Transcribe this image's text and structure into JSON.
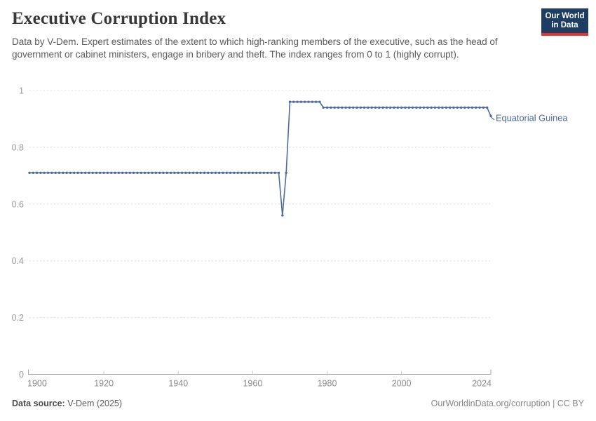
{
  "header": {
    "title": "Executive Corruption Index",
    "subtitle": "Data by V-Dem. Expert estimates of the extent to which high-ranking members of the executive, such as the head of government or cabinet ministers, engage in bribery and theft. The index ranges from 0 to 1 (highly corrupt).",
    "logo": {
      "line1": "Our World",
      "line2": "in Data"
    }
  },
  "footer": {
    "source_label": "Data source:",
    "source_value": " V-Dem (2025)",
    "credit": "OurWorldinData.org/corruption | CC BY"
  },
  "colors": {
    "line": "#4c6a9c",
    "entity_label": "#4c6a9c",
    "logo_navy": "#1d3d63",
    "logo_red": "#e0362f",
    "gridline": "#dcdcdc",
    "axis": "#a6a6a6",
    "tick_label": "#999999"
  },
  "chart_data": {
    "type": "line",
    "title": "Executive Corruption Index",
    "entity": "Equatorial Guinea",
    "xlabel": "",
    "ylabel": "",
    "x_start": 1900,
    "x_end": 2024,
    "x_step": 1,
    "x_ticks": [
      1900,
      1920,
      1940,
      1960,
      1980,
      2000,
      2024
    ],
    "y_ticks": [
      0,
      0.2,
      0.4,
      0.6,
      0.8,
      1
    ],
    "ylim": [
      0,
      1
    ],
    "grid": true,
    "legend_position": "end-of-line-label",
    "line_color": "#4c6a9c",
    "values": [
      0.71,
      0.71,
      0.71,
      0.71,
      0.71,
      0.71,
      0.71,
      0.71,
      0.71,
      0.71,
      0.71,
      0.71,
      0.71,
      0.71,
      0.71,
      0.71,
      0.71,
      0.71,
      0.71,
      0.71,
      0.71,
      0.71,
      0.71,
      0.71,
      0.71,
      0.71,
      0.71,
      0.71,
      0.71,
      0.71,
      0.71,
      0.71,
      0.71,
      0.71,
      0.71,
      0.71,
      0.71,
      0.71,
      0.71,
      0.71,
      0.71,
      0.71,
      0.71,
      0.71,
      0.71,
      0.71,
      0.71,
      0.71,
      0.71,
      0.71,
      0.71,
      0.71,
      0.71,
      0.71,
      0.71,
      0.71,
      0.71,
      0.71,
      0.71,
      0.71,
      0.71,
      0.71,
      0.71,
      0.71,
      0.71,
      0.71,
      0.71,
      0.71,
      0.56,
      0.71,
      0.96,
      0.96,
      0.96,
      0.96,
      0.96,
      0.96,
      0.96,
      0.96,
      0.96,
      0.94,
      0.94,
      0.94,
      0.94,
      0.94,
      0.94,
      0.94,
      0.94,
      0.94,
      0.94,
      0.94,
      0.94,
      0.94,
      0.94,
      0.94,
      0.94,
      0.94,
      0.94,
      0.94,
      0.94,
      0.94,
      0.94,
      0.94,
      0.94,
      0.94,
      0.94,
      0.94,
      0.94,
      0.94,
      0.94,
      0.94,
      0.94,
      0.94,
      0.94,
      0.94,
      0.94,
      0.94,
      0.94,
      0.94,
      0.94,
      0.94,
      0.94,
      0.94,
      0.94,
      0.94,
      0.91
    ]
  }
}
